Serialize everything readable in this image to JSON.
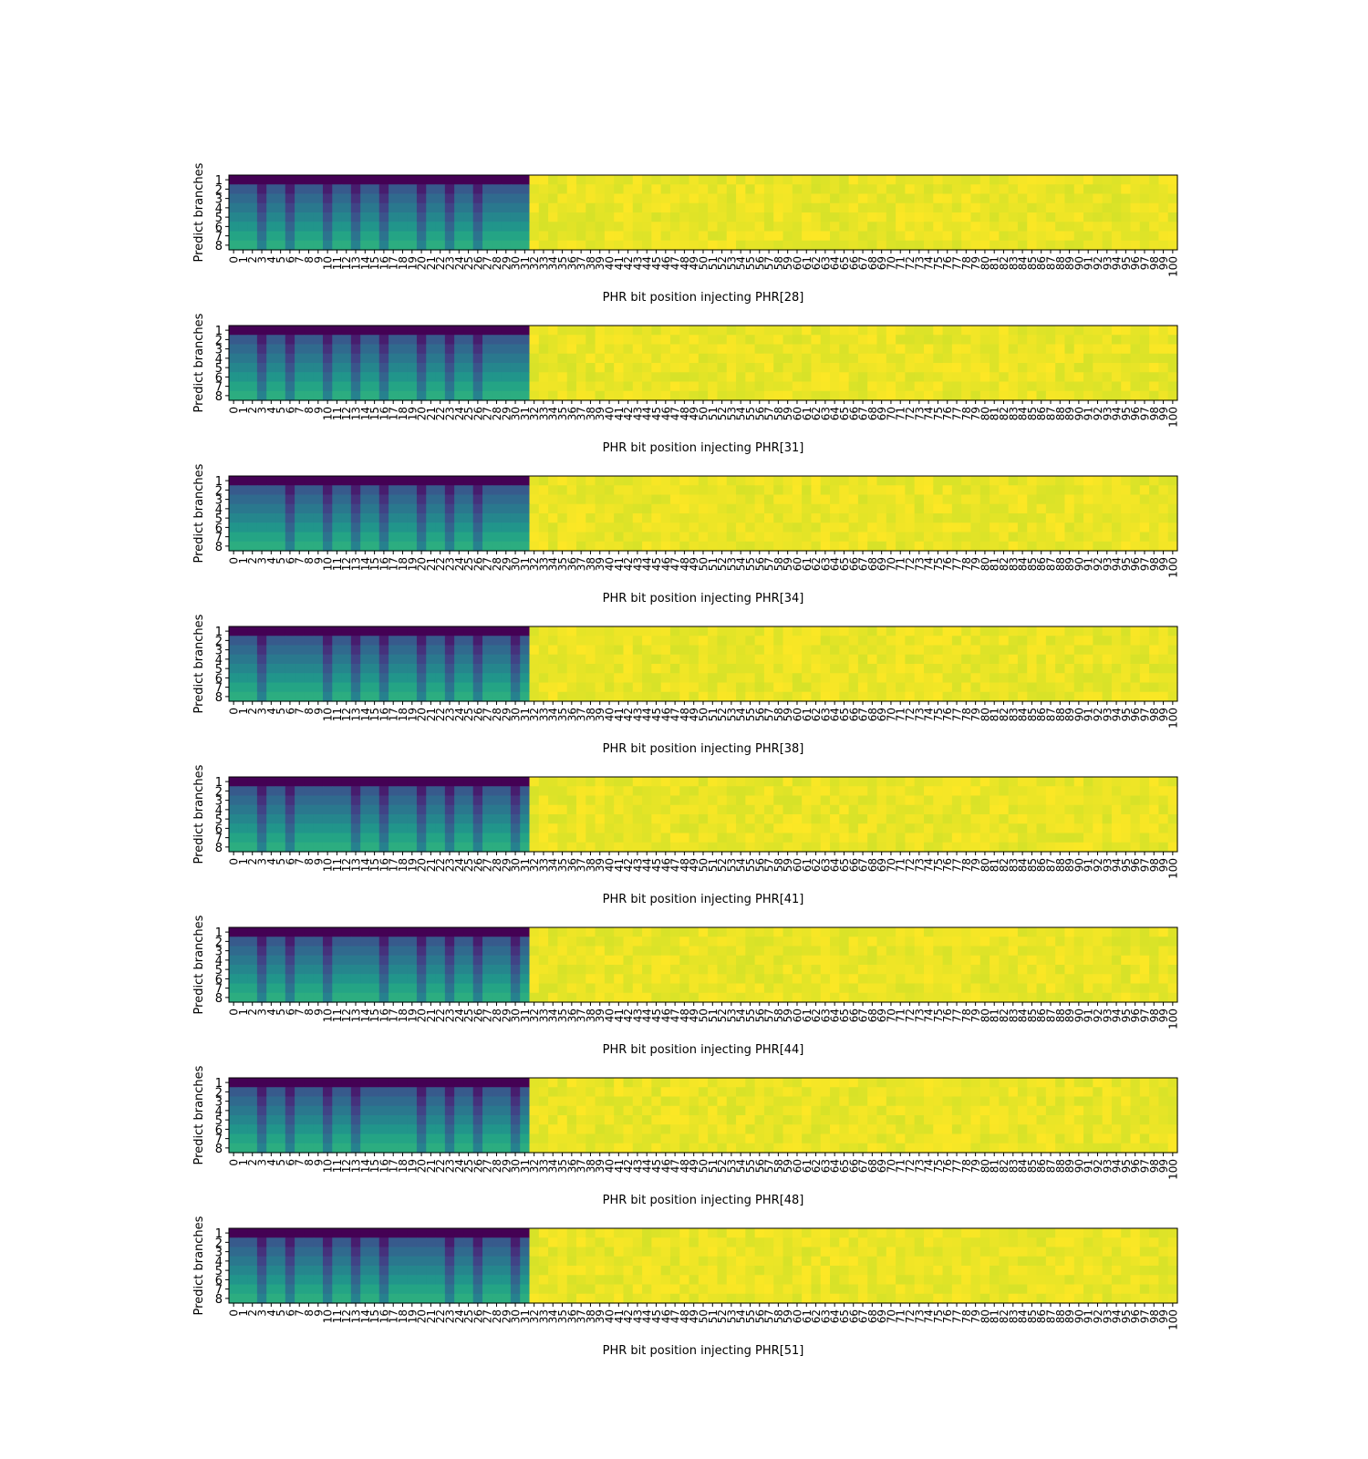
{
  "chart_data": [
    {
      "type": "heatmap",
      "xlabel": "PHR bit position injecting PHR[28]",
      "ylabel": "Predict branches",
      "x_categories_range": [
        0,
        100
      ],
      "y_categories": [
        "1",
        "2",
        "3",
        "4",
        "5",
        "6",
        "7",
        "8"
      ],
      "value_range": [
        0,
        1
      ],
      "colormap": "viridis",
      "summary": "Columns 0-31 show low values (dark purple top rows fading through blue/teal to green in lower rows), columns 32-100 are near the maximum (yellow).",
      "dark_columns": [
        3,
        6,
        10,
        13,
        16,
        20,
        23,
        26
      ]
    },
    {
      "type": "heatmap",
      "xlabel": "PHR bit position injecting PHR[31]",
      "ylabel": "Predict branches",
      "x_categories_range": [
        0,
        100
      ],
      "y_categories": [
        "1",
        "2",
        "3",
        "4",
        "5",
        "6",
        "7",
        "8"
      ],
      "value_range": [
        0,
        1
      ],
      "colormap": "viridis",
      "summary": "Columns 0-31 low values with gradient down rows; columns 32-100 near maximum.",
      "dark_columns": [
        3,
        6,
        10,
        13,
        16,
        20,
        23,
        26
      ]
    },
    {
      "type": "heatmap",
      "xlabel": "PHR bit position injecting PHR[34]",
      "ylabel": "Predict branches",
      "x_categories_range": [
        0,
        100
      ],
      "y_categories": [
        "1",
        "2",
        "3",
        "4",
        "5",
        "6",
        "7",
        "8"
      ],
      "value_range": [
        0,
        1
      ],
      "colormap": "viridis",
      "summary": "Columns 0-31 low values with gradient down rows; columns 32-100 near maximum.",
      "dark_columns": [
        6,
        10,
        13,
        16,
        20,
        23,
        26
      ]
    },
    {
      "type": "heatmap",
      "xlabel": "PHR bit position injecting PHR[38]",
      "ylabel": "Predict branches",
      "x_categories_range": [
        0,
        100
      ],
      "y_categories": [
        "1",
        "2",
        "3",
        "4",
        "5",
        "6",
        "7",
        "8"
      ],
      "value_range": [
        0,
        1
      ],
      "colormap": "viridis",
      "summary": "Columns 0-31 low values with gradient down rows; columns 32-100 near maximum.",
      "dark_columns": [
        3,
        10,
        13,
        16,
        20,
        23,
        26,
        30
      ]
    },
    {
      "type": "heatmap",
      "xlabel": "PHR bit position injecting PHR[41]",
      "ylabel": "Predict branches",
      "x_categories_range": [
        0,
        100
      ],
      "y_categories": [
        "1",
        "2",
        "3",
        "4",
        "5",
        "6",
        "7",
        "8"
      ],
      "value_range": [
        0,
        1
      ],
      "colormap": "viridis",
      "summary": "Columns 0-31 low values with gradient down rows; columns 32-100 near maximum.",
      "dark_columns": [
        3,
        6,
        13,
        16,
        20,
        23,
        26,
        30
      ]
    },
    {
      "type": "heatmap",
      "xlabel": "PHR bit position injecting PHR[44]",
      "ylabel": "Predict branches",
      "x_categories_range": [
        0,
        100
      ],
      "y_categories": [
        "1",
        "2",
        "3",
        "4",
        "5",
        "6",
        "7",
        "8"
      ],
      "value_range": [
        0,
        1
      ],
      "colormap": "viridis",
      "summary": "Columns 0-31 low values with gradient down rows; columns 32-100 near maximum.",
      "dark_columns": [
        3,
        6,
        10,
        16,
        20,
        23,
        26,
        30
      ]
    },
    {
      "type": "heatmap",
      "xlabel": "PHR bit position injecting PHR[48]",
      "ylabel": "Predict branches",
      "x_categories_range": [
        0,
        100
      ],
      "y_categories": [
        "1",
        "2",
        "3",
        "4",
        "5",
        "6",
        "7",
        "8"
      ],
      "value_range": [
        0,
        1
      ],
      "colormap": "viridis",
      "summary": "Columns 0-31 low values with gradient down rows; columns 32-100 near maximum.",
      "dark_columns": [
        3,
        6,
        10,
        13,
        20,
        23,
        26,
        30
      ]
    },
    {
      "type": "heatmap",
      "xlabel": "PHR bit position injecting PHR[51]",
      "ylabel": "Predict branches",
      "x_categories_range": [
        0,
        100
      ],
      "y_categories": [
        "1",
        "2",
        "3",
        "4",
        "5",
        "6",
        "7",
        "8"
      ],
      "value_range": [
        0,
        1
      ],
      "colormap": "viridis",
      "summary": "Columns 0-31 low values with gradient down rows; columns 32-100 near maximum.",
      "dark_columns": [
        3,
        6,
        10,
        13,
        16,
        23,
        26,
        30
      ]
    }
  ]
}
